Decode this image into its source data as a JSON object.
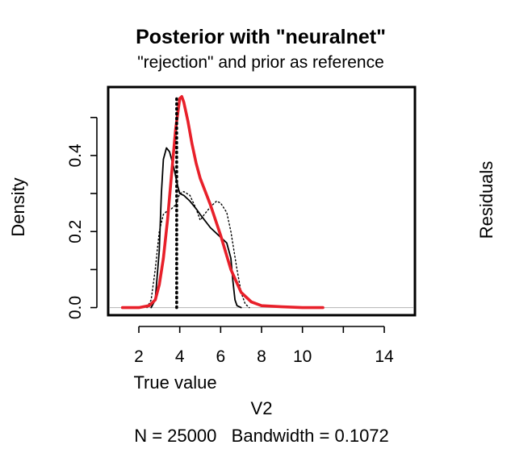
{
  "chart_data": {
    "type": "line",
    "title": "Posterior with \"neuralnet\"",
    "subtitle": "\"rejection\" and prior as reference",
    "xlabel": "V2",
    "ylabel": "Density",
    "right_label": "Residuals",
    "footer": "N = 25000   Bandwidth = 0.1072",
    "marker_label": "True value",
    "true_value": 3.85,
    "xlim": [
      0.5,
      15.5
    ],
    "ylim": [
      -0.02,
      0.58
    ],
    "x_ticks": [
      2,
      4,
      6,
      8,
      10,
      14
    ],
    "x_tick_marks": [
      2,
      4,
      6,
      8,
      10,
      12,
      14
    ],
    "y_ticks": [
      0.0,
      0.2,
      0.4
    ],
    "y_tick_marks": [
      0.0,
      0.1,
      0.2,
      0.3,
      0.4,
      0.5
    ],
    "y_tick_labels": [
      "0.0",
      "0.2",
      "0.4"
    ],
    "baseline_color": "#bdbdbd",
    "series": [
      {
        "name": "neuralnet",
        "color": "#e8202a",
        "style": "solid",
        "x": [
          1.2,
          2.0,
          2.5,
          2.8,
          3.0,
          3.2,
          3.4,
          3.6,
          3.8,
          4.0,
          4.1,
          4.2,
          4.4,
          4.6,
          4.8,
          5.0,
          5.5,
          6.0,
          6.5,
          7.0,
          7.5,
          8.0,
          9.0,
          10.0,
          11.0
        ],
        "y": [
          0.0,
          0.0,
          0.005,
          0.02,
          0.06,
          0.13,
          0.23,
          0.35,
          0.47,
          0.55,
          0.555,
          0.54,
          0.49,
          0.43,
          0.38,
          0.34,
          0.27,
          0.19,
          0.1,
          0.04,
          0.015,
          0.005,
          0.002,
          0.0,
          0.0
        ]
      },
      {
        "name": "rejection",
        "color": "#000000",
        "style": "solid",
        "x": [
          2.6,
          2.8,
          3.0,
          3.1,
          3.2,
          3.35,
          3.5,
          3.7,
          3.9,
          4.0,
          4.2,
          4.5,
          4.8,
          5.0,
          5.5,
          6.0,
          6.3,
          6.5,
          6.6,
          6.7,
          6.8,
          7.0
        ],
        "y": [
          0.0,
          0.02,
          0.15,
          0.3,
          0.39,
          0.42,
          0.41,
          0.37,
          0.32,
          0.3,
          0.295,
          0.28,
          0.26,
          0.245,
          0.21,
          0.185,
          0.17,
          0.13,
          0.07,
          0.02,
          0.005,
          0.0
        ]
      },
      {
        "name": "prior",
        "color": "#000000",
        "style": "dotted",
        "x": [
          2.4,
          2.6,
          2.8,
          3.0,
          3.2,
          3.4,
          3.6,
          3.8,
          4.0,
          4.2,
          4.5,
          4.8,
          5.0,
          5.2,
          5.5,
          5.8,
          6.0,
          6.3,
          6.5,
          6.8,
          7.0,
          7.2,
          7.4
        ],
        "y": [
          0.0,
          0.02,
          0.1,
          0.2,
          0.245,
          0.255,
          0.26,
          0.27,
          0.3,
          0.305,
          0.295,
          0.26,
          0.23,
          0.245,
          0.265,
          0.28,
          0.275,
          0.25,
          0.2,
          0.1,
          0.04,
          0.01,
          0.0
        ]
      }
    ]
  }
}
